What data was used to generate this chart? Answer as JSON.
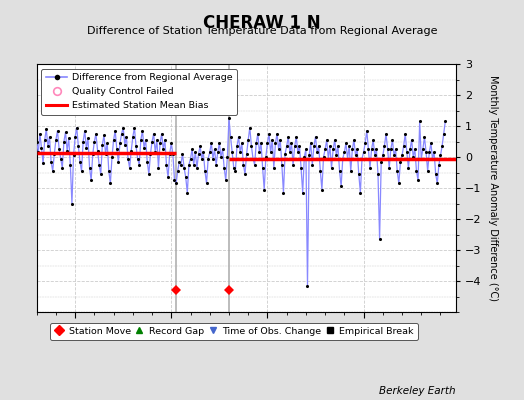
{
  "title": "CHERAW 1 N",
  "subtitle": "Difference of Station Temperature Data from Regional Average",
  "ylabel": "Monthly Temperature Anomaly Difference (°C)",
  "credit": "Berkeley Earth",
  "background_color": "#e0e0e0",
  "plot_bg_color": "#ffffff",
  "ylim": [
    -5,
    3
  ],
  "xlim": [
    1993.0,
    2014.8
  ],
  "yticks": [
    -4,
    -3,
    -2,
    -1,
    0,
    1,
    2,
    3
  ],
  "xticks": [
    1995,
    2000,
    2005,
    2010
  ],
  "segment_biases": [
    {
      "x_start": 1993.0,
      "x_end": 2000.25,
      "bias": 0.12
    },
    {
      "x_start": 2003.0,
      "x_end": 2014.8,
      "bias": -0.05
    }
  ],
  "vertical_lines": [
    {
      "x": 2000.25,
      "color": "#aaaaaa",
      "lw": 1.2
    },
    {
      "x": 2003.0,
      "color": "#aaaaaa",
      "lw": 1.2
    }
  ],
  "station_moves": [
    2000.25,
    2003.0
  ],
  "time_of_obs_change": [],
  "line_color": "#8888ff",
  "marker_color": "#000000",
  "bias_color": "#ff0000",
  "grid_color": "#cccccc",
  "data": [
    [
      1993.0,
      0.5
    ],
    [
      1993.083,
      0.15
    ],
    [
      1993.167,
      0.75
    ],
    [
      1993.25,
      0.3
    ],
    [
      1993.333,
      -0.2
    ],
    [
      1993.417,
      0.55
    ],
    [
      1993.5,
      0.9
    ],
    [
      1993.583,
      0.35
    ],
    [
      1993.667,
      0.65
    ],
    [
      1993.75,
      -0.15
    ],
    [
      1993.833,
      -0.45
    ],
    [
      1993.917,
      0.1
    ],
    [
      1994.0,
      0.55
    ],
    [
      1994.083,
      0.85
    ],
    [
      1994.167,
      0.25
    ],
    [
      1994.25,
      -0.05
    ],
    [
      1994.333,
      -0.35
    ],
    [
      1994.417,
      0.5
    ],
    [
      1994.5,
      0.8
    ],
    [
      1994.583,
      0.2
    ],
    [
      1994.667,
      0.6
    ],
    [
      1994.75,
      -0.25
    ],
    [
      1994.833,
      -1.5
    ],
    [
      1994.917,
      0.05
    ],
    [
      1995.0,
      0.65
    ],
    [
      1995.083,
      0.95
    ],
    [
      1995.167,
      0.35
    ],
    [
      1995.25,
      -0.15
    ],
    [
      1995.333,
      -0.45
    ],
    [
      1995.417,
      0.5
    ],
    [
      1995.5,
      0.85
    ],
    [
      1995.583,
      0.3
    ],
    [
      1995.667,
      0.6
    ],
    [
      1995.75,
      -0.35
    ],
    [
      1995.833,
      -0.75
    ],
    [
      1995.917,
      0.1
    ],
    [
      1996.0,
      0.5
    ],
    [
      1996.083,
      0.75
    ],
    [
      1996.167,
      0.2
    ],
    [
      1996.25,
      -0.25
    ],
    [
      1996.333,
      -0.55
    ],
    [
      1996.417,
      0.4
    ],
    [
      1996.5,
      0.7
    ],
    [
      1996.583,
      0.1
    ],
    [
      1996.667,
      0.45
    ],
    [
      1996.75,
      -0.45
    ],
    [
      1996.833,
      -0.85
    ],
    [
      1996.917,
      0.0
    ],
    [
      1997.0,
      0.55
    ],
    [
      1997.083,
      0.85
    ],
    [
      1997.167,
      0.25
    ],
    [
      1997.25,
      -0.15
    ],
    [
      1997.333,
      0.45
    ],
    [
      1997.417,
      0.75
    ],
    [
      1997.5,
      0.95
    ],
    [
      1997.583,
      0.4
    ],
    [
      1997.667,
      0.65
    ],
    [
      1997.75,
      -0.05
    ],
    [
      1997.833,
      -0.35
    ],
    [
      1997.917,
      0.2
    ],
    [
      1998.0,
      0.65
    ],
    [
      1998.083,
      0.95
    ],
    [
      1998.167,
      0.35
    ],
    [
      1998.25,
      -0.05
    ],
    [
      1998.333,
      -0.25
    ],
    [
      1998.417,
      0.55
    ],
    [
      1998.5,
      0.85
    ],
    [
      1998.583,
      0.3
    ],
    [
      1998.667,
      0.55
    ],
    [
      1998.75,
      -0.15
    ],
    [
      1998.833,
      -0.55
    ],
    [
      1998.917,
      0.1
    ],
    [
      1999.0,
      0.5
    ],
    [
      1999.083,
      0.75
    ],
    [
      1999.167,
      0.15
    ],
    [
      1999.25,
      0.55
    ],
    [
      1999.333,
      -0.35
    ],
    [
      1999.417,
      0.45
    ],
    [
      1999.5,
      0.75
    ],
    [
      1999.583,
      0.25
    ],
    [
      1999.667,
      0.55
    ],
    [
      1999.75,
      -0.25
    ],
    [
      1999.833,
      -0.65
    ],
    [
      1999.917,
      0.1
    ],
    [
      2000.0,
      0.45
    ],
    [
      2000.083,
      0.1
    ],
    [
      2000.167,
      -0.75
    ],
    [
      2000.25,
      -0.85
    ],
    [
      2000.333,
      -0.45
    ],
    [
      2000.417,
      -0.15
    ],
    [
      2000.5,
      -0.25
    ],
    [
      2000.583,
      0.1
    ],
    [
      2000.667,
      -0.35
    ],
    [
      2000.75,
      -0.65
    ],
    [
      2000.833,
      -1.15
    ],
    [
      2000.917,
      -0.25
    ],
    [
      2001.0,
      -0.05
    ],
    [
      2001.083,
      0.25
    ],
    [
      2001.167,
      -0.25
    ],
    [
      2001.25,
      0.15
    ],
    [
      2001.333,
      -0.35
    ],
    [
      2001.417,
      0.1
    ],
    [
      2001.5,
      0.35
    ],
    [
      2001.583,
      -0.05
    ],
    [
      2001.667,
      0.15
    ],
    [
      2001.75,
      -0.45
    ],
    [
      2001.833,
      -0.85
    ],
    [
      2001.917,
      -0.05
    ],
    [
      2002.0,
      0.15
    ],
    [
      2002.083,
      0.45
    ],
    [
      2002.167,
      -0.05
    ],
    [
      2002.25,
      0.25
    ],
    [
      2002.333,
      -0.25
    ],
    [
      2002.417,
      0.15
    ],
    [
      2002.5,
      0.45
    ],
    [
      2002.583,
      0.0
    ],
    [
      2002.667,
      0.25
    ],
    [
      2002.75,
      -0.35
    ],
    [
      2002.833,
      -0.75
    ],
    [
      2002.917,
      0.0
    ],
    [
      2003.0,
      1.25
    ],
    [
      2003.083,
      0.65
    ],
    [
      2003.167,
      0.15
    ],
    [
      2003.25,
      -0.35
    ],
    [
      2003.333,
      -0.45
    ],
    [
      2003.417,
      0.35
    ],
    [
      2003.5,
      0.65
    ],
    [
      2003.583,
      0.15
    ],
    [
      2003.667,
      0.45
    ],
    [
      2003.75,
      -0.25
    ],
    [
      2003.833,
      -0.55
    ],
    [
      2003.917,
      0.1
    ],
    [
      2004.0,
      0.55
    ],
    [
      2004.083,
      0.95
    ],
    [
      2004.167,
      0.35
    ],
    [
      2004.25,
      -0.05
    ],
    [
      2004.333,
      -0.25
    ],
    [
      2004.417,
      0.45
    ],
    [
      2004.5,
      0.75
    ],
    [
      2004.583,
      0.15
    ],
    [
      2004.667,
      0.45
    ],
    [
      2004.75,
      -0.35
    ],
    [
      2004.833,
      -1.05
    ],
    [
      2004.917,
      0.0
    ],
    [
      2005.0,
      0.45
    ],
    [
      2005.083,
      0.75
    ],
    [
      2005.167,
      0.15
    ],
    [
      2005.25,
      0.55
    ],
    [
      2005.333,
      -0.35
    ],
    [
      2005.417,
      0.45
    ],
    [
      2005.5,
      0.75
    ],
    [
      2005.583,
      0.25
    ],
    [
      2005.667,
      0.55
    ],
    [
      2005.75,
      -0.25
    ],
    [
      2005.833,
      -1.15
    ],
    [
      2005.917,
      0.1
    ],
    [
      2006.0,
      0.35
    ],
    [
      2006.083,
      0.65
    ],
    [
      2006.167,
      0.15
    ],
    [
      2006.25,
      0.45
    ],
    [
      2006.333,
      -0.25
    ],
    [
      2006.417,
      0.35
    ],
    [
      2006.5,
      0.65
    ],
    [
      2006.583,
      0.15
    ],
    [
      2006.667,
      0.35
    ],
    [
      2006.75,
      -0.35
    ],
    [
      2006.833,
      -1.15
    ],
    [
      2006.917,
      0.0
    ],
    [
      2007.0,
      0.25
    ],
    [
      2007.083,
      -4.15
    ],
    [
      2007.167,
      0.05
    ],
    [
      2007.25,
      0.45
    ],
    [
      2007.333,
      -0.25
    ],
    [
      2007.417,
      0.35
    ],
    [
      2007.5,
      0.65
    ],
    [
      2007.583,
      0.15
    ],
    [
      2007.667,
      0.35
    ],
    [
      2007.75,
      -0.45
    ],
    [
      2007.833,
      -1.05
    ],
    [
      2007.917,
      0.0
    ],
    [
      2008.0,
      0.25
    ],
    [
      2008.083,
      0.55
    ],
    [
      2008.167,
      -0.05
    ],
    [
      2008.25,
      0.35
    ],
    [
      2008.333,
      -0.35
    ],
    [
      2008.417,
      0.25
    ],
    [
      2008.5,
      0.55
    ],
    [
      2008.583,
      0.05
    ],
    [
      2008.667,
      0.35
    ],
    [
      2008.75,
      -0.45
    ],
    [
      2008.833,
      -0.95
    ],
    [
      2008.917,
      -0.05
    ],
    [
      2009.0,
      0.15
    ],
    [
      2009.083,
      0.45
    ],
    [
      2009.167,
      -0.05
    ],
    [
      2009.25,
      0.35
    ],
    [
      2009.333,
      -0.45
    ],
    [
      2009.417,
      0.25
    ],
    [
      2009.5,
      0.55
    ],
    [
      2009.583,
      0.05
    ],
    [
      2009.667,
      0.25
    ],
    [
      2009.75,
      -0.55
    ],
    [
      2009.833,
      -1.15
    ],
    [
      2009.917,
      -0.05
    ],
    [
      2010.0,
      0.15
    ],
    [
      2010.083,
      0.45
    ],
    [
      2010.167,
      0.85
    ],
    [
      2010.25,
      0.25
    ],
    [
      2010.333,
      -0.35
    ],
    [
      2010.417,
      0.25
    ],
    [
      2010.5,
      0.55
    ],
    [
      2010.583,
      0.05
    ],
    [
      2010.667,
      0.25
    ],
    [
      2010.75,
      -0.55
    ],
    [
      2010.833,
      -2.65
    ],
    [
      2010.917,
      -0.15
    ],
    [
      2011.0,
      0.05
    ],
    [
      2011.083,
      0.35
    ],
    [
      2011.167,
      0.75
    ],
    [
      2011.25,
      0.25
    ],
    [
      2011.333,
      -0.35
    ],
    [
      2011.417,
      0.25
    ],
    [
      2011.5,
      0.55
    ],
    [
      2011.583,
      0.05
    ],
    [
      2011.667,
      0.25
    ],
    [
      2011.75,
      -0.45
    ],
    [
      2011.833,
      -0.85
    ],
    [
      2011.917,
      -0.15
    ],
    [
      2012.0,
      0.05
    ],
    [
      2012.083,
      0.35
    ],
    [
      2012.167,
      0.75
    ],
    [
      2012.25,
      0.15
    ],
    [
      2012.333,
      -0.35
    ],
    [
      2012.417,
      0.25
    ],
    [
      2012.5,
      0.55
    ],
    [
      2012.583,
      0.0
    ],
    [
      2012.667,
      0.25
    ],
    [
      2012.75,
      -0.45
    ],
    [
      2012.833,
      -0.75
    ],
    [
      2012.917,
      1.15
    ],
    [
      2013.0,
      -0.05
    ],
    [
      2013.083,
      0.25
    ],
    [
      2013.167,
      0.65
    ],
    [
      2013.25,
      0.15
    ],
    [
      2013.333,
      -0.45
    ],
    [
      2013.417,
      0.15
    ],
    [
      2013.5,
      0.45
    ],
    [
      2013.583,
      -0.05
    ],
    [
      2013.667,
      0.15
    ],
    [
      2013.75,
      -0.55
    ],
    [
      2013.833,
      -0.85
    ],
    [
      2013.917,
      -0.25
    ],
    [
      2014.0,
      0.05
    ],
    [
      2014.083,
      0.35
    ],
    [
      2014.167,
      0.75
    ],
    [
      2014.25,
      1.15
    ]
  ]
}
